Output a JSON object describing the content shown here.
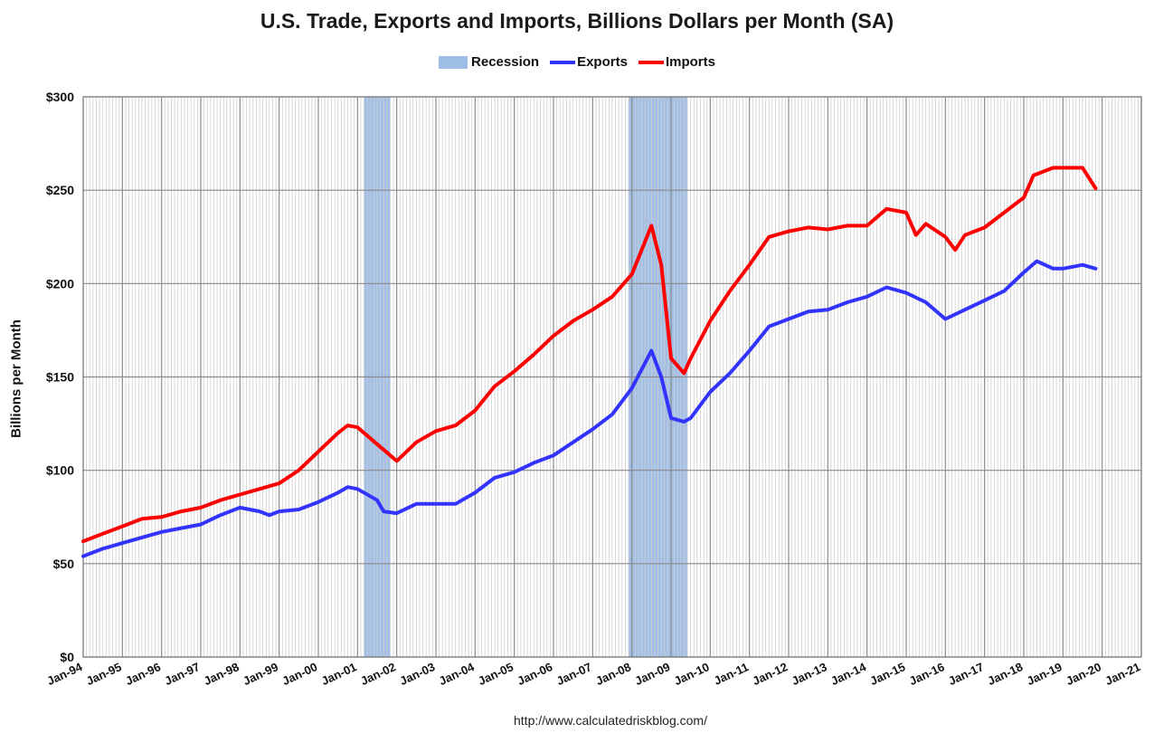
{
  "chart_data": {
    "type": "line",
    "title": "U.S. Trade, Exports and Imports, Billions Dollars per Month (SA)",
    "ylabel": "Billions per Month",
    "xlabel": "",
    "source": "http://www.calculatedriskblog.com/",
    "ylim": [
      0,
      300
    ],
    "x_range": [
      "1994-01",
      "2021-01"
    ],
    "grid": "vertical monthly lines, horizontal every $50",
    "legend_position": "top",
    "y_ticks": [
      "$0",
      "$50",
      "$100",
      "$150",
      "$200",
      "$250",
      "$300"
    ],
    "y_tick_values": [
      0,
      50,
      100,
      150,
      200,
      250,
      300
    ],
    "x_ticks": [
      "Jan-94",
      "Jan-95",
      "Jan-96",
      "Jan-97",
      "Jan-98",
      "Jan-99",
      "Jan-00",
      "Jan-01",
      "Jan-02",
      "Jan-03",
      "Jan-04",
      "Jan-05",
      "Jan-06",
      "Jan-07",
      "Jan-08",
      "Jan-09",
      "Jan-10",
      "Jan-11",
      "Jan-12",
      "Jan-13",
      "Jan-14",
      "Jan-15",
      "Jan-16",
      "Jan-17",
      "Jan-18",
      "Jan-19",
      "Jan-20",
      "Jan-21"
    ],
    "legend": [
      {
        "label": "Recession",
        "color": "#9dbde6",
        "kind": "box"
      },
      {
        "label": "Exports",
        "color": "#3333ff",
        "kind": "line"
      },
      {
        "label": "Imports",
        "color": "#ff0000",
        "kind": "line"
      }
    ],
    "recessions": [
      {
        "start": "2001-03",
        "end": "2001-11"
      },
      {
        "start": "2007-12",
        "end": "2009-06"
      }
    ],
    "series": [
      {
        "name": "Exports",
        "color": "#3333ff",
        "points": [
          [
            "1994-01",
            54
          ],
          [
            "1994-07",
            58
          ],
          [
            "1995-01",
            61
          ],
          [
            "1995-07",
            64
          ],
          [
            "1996-01",
            67
          ],
          [
            "1996-07",
            69
          ],
          [
            "1997-01",
            71
          ],
          [
            "1997-07",
            76
          ],
          [
            "1998-01",
            80
          ],
          [
            "1998-07",
            78
          ],
          [
            "1998-10",
            76
          ],
          [
            "1999-01",
            78
          ],
          [
            "1999-07",
            79
          ],
          [
            "2000-01",
            83
          ],
          [
            "2000-07",
            88
          ],
          [
            "2000-10",
            91
          ],
          [
            "2001-01",
            90
          ],
          [
            "2001-07",
            84
          ],
          [
            "2001-09",
            78
          ],
          [
            "2002-01",
            77
          ],
          [
            "2002-07",
            82
          ],
          [
            "2003-01",
            82
          ],
          [
            "2003-07",
            82
          ],
          [
            "2004-01",
            88
          ],
          [
            "2004-07",
            96
          ],
          [
            "2005-01",
            99
          ],
          [
            "2005-07",
            104
          ],
          [
            "2006-01",
            108
          ],
          [
            "2006-07",
            115
          ],
          [
            "2007-01",
            122
          ],
          [
            "2007-07",
            130
          ],
          [
            "2008-01",
            144
          ],
          [
            "2008-07",
            164
          ],
          [
            "2008-10",
            150
          ],
          [
            "2009-01",
            128
          ],
          [
            "2009-05",
            126
          ],
          [
            "2009-07",
            128
          ],
          [
            "2010-01",
            142
          ],
          [
            "2010-07",
            152
          ],
          [
            "2011-01",
            164
          ],
          [
            "2011-07",
            177
          ],
          [
            "2012-01",
            181
          ],
          [
            "2012-07",
            185
          ],
          [
            "2013-01",
            186
          ],
          [
            "2013-07",
            190
          ],
          [
            "2014-01",
            193
          ],
          [
            "2014-07",
            198
          ],
          [
            "2015-01",
            195
          ],
          [
            "2015-07",
            190
          ],
          [
            "2016-01",
            181
          ],
          [
            "2016-07",
            186
          ],
          [
            "2017-01",
            191
          ],
          [
            "2017-07",
            196
          ],
          [
            "2018-01",
            206
          ],
          [
            "2018-05",
            212
          ],
          [
            "2018-10",
            208
          ],
          [
            "2019-01",
            208
          ],
          [
            "2019-07",
            210
          ],
          [
            "2019-11",
            208
          ]
        ]
      },
      {
        "name": "Imports",
        "color": "#ff0000",
        "points": [
          [
            "1994-01",
            62
          ],
          [
            "1994-07",
            66
          ],
          [
            "1995-01",
            70
          ],
          [
            "1995-07",
            74
          ],
          [
            "1996-01",
            75
          ],
          [
            "1996-07",
            78
          ],
          [
            "1997-01",
            80
          ],
          [
            "1997-07",
            84
          ],
          [
            "1998-01",
            87
          ],
          [
            "1998-07",
            90
          ],
          [
            "1999-01",
            93
          ],
          [
            "1999-07",
            100
          ],
          [
            "2000-01",
            110
          ],
          [
            "2000-07",
            120
          ],
          [
            "2000-10",
            124
          ],
          [
            "2001-01",
            123
          ],
          [
            "2001-07",
            114
          ],
          [
            "2002-01",
            105
          ],
          [
            "2002-07",
            115
          ],
          [
            "2003-01",
            121
          ],
          [
            "2003-07",
            124
          ],
          [
            "2004-01",
            132
          ],
          [
            "2004-07",
            145
          ],
          [
            "2005-01",
            153
          ],
          [
            "2005-07",
            162
          ],
          [
            "2006-01",
            172
          ],
          [
            "2006-07",
            180
          ],
          [
            "2007-01",
            186
          ],
          [
            "2007-07",
            193
          ],
          [
            "2008-01",
            205
          ],
          [
            "2008-07",
            231
          ],
          [
            "2008-10",
            210
          ],
          [
            "2009-01",
            160
          ],
          [
            "2009-05",
            152
          ],
          [
            "2009-07",
            160
          ],
          [
            "2010-01",
            180
          ],
          [
            "2010-07",
            196
          ],
          [
            "2011-01",
            210
          ],
          [
            "2011-07",
            225
          ],
          [
            "2012-01",
            228
          ],
          [
            "2012-07",
            230
          ],
          [
            "2013-01",
            229
          ],
          [
            "2013-07",
            231
          ],
          [
            "2014-01",
            231
          ],
          [
            "2014-07",
            240
          ],
          [
            "2015-01",
            238
          ],
          [
            "2015-04",
            226
          ],
          [
            "2015-07",
            232
          ],
          [
            "2016-01",
            225
          ],
          [
            "2016-04",
            218
          ],
          [
            "2016-07",
            226
          ],
          [
            "2017-01",
            230
          ],
          [
            "2017-07",
            238
          ],
          [
            "2018-01",
            246
          ],
          [
            "2018-04",
            258
          ],
          [
            "2018-10",
            262
          ],
          [
            "2019-01",
            262
          ],
          [
            "2019-07",
            262
          ],
          [
            "2019-11",
            251
          ]
        ]
      }
    ]
  }
}
